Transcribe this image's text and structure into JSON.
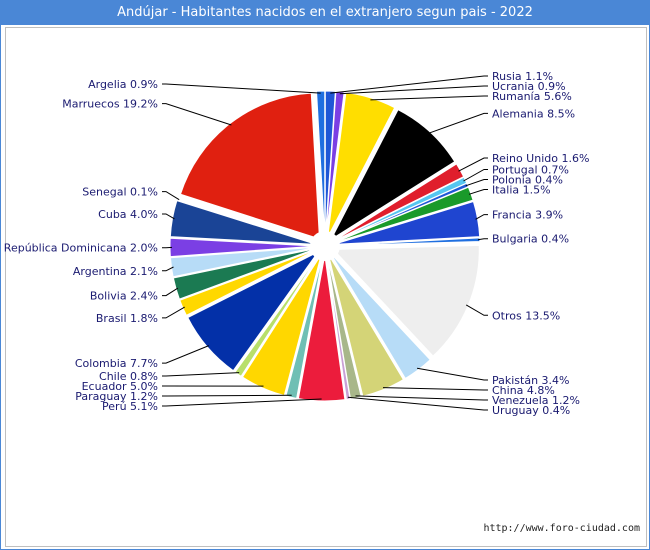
{
  "title": "Andújar - Habitantes nacidos en el extranjero segun pais - 2022",
  "source": "http://www.foro-ciudad.com",
  "chart_data": {
    "type": "pie",
    "title": "Andújar - Habitantes nacidos en el extranjero segun pais - 2022",
    "unit": "%",
    "slices": [
      {
        "label": "Rusia",
        "value": 1.1,
        "text": "Rusia 1.1%",
        "color": "#1f57d6"
      },
      {
        "label": "Ucrania",
        "value": 0.9,
        "text": "Ucrania 0.9%",
        "color": "#7b3fe4"
      },
      {
        "label": "Rumanía",
        "value": 5.6,
        "text": "Rumanía 5.6%",
        "color": "#ffde00"
      },
      {
        "label": "Alemania",
        "value": 8.5,
        "text": "Alemania 8.5%",
        "color": "#000000"
      },
      {
        "label": "Reino Unido",
        "value": 1.6,
        "text": "Reino Unido 1.6%",
        "color": "#e01e2c"
      },
      {
        "label": "Portugal",
        "value": 0.7,
        "text": "Portugal 0.7%",
        "color": "#55c6f0"
      },
      {
        "label": "Polonia",
        "value": 0.4,
        "text": "Polonia 0.4%",
        "color": "#1f57d6"
      },
      {
        "label": "Italia",
        "value": 1.5,
        "text": "Italia 1.5%",
        "color": "#1a9a2a"
      },
      {
        "label": "Francia",
        "value": 3.9,
        "text": "Francia 3.9%",
        "color": "#1f45d0"
      },
      {
        "label": "Bulgaria",
        "value": 0.4,
        "text": "Bulgaria 0.4%",
        "color": "#1f6fe0"
      },
      {
        "label": "Otros",
        "value": 13.5,
        "text": "Otros 13.5%",
        "color": "#eeeeee"
      },
      {
        "label": "Pakistán",
        "value": 3.4,
        "text": "Pakistán 3.4%",
        "color": "#b7dcf7"
      },
      {
        "label": "China",
        "value": 4.8,
        "text": "China 4.8%",
        "color": "#d4d477"
      },
      {
        "label": "Venezuela",
        "value": 1.2,
        "text": "Venezuela 1.2%",
        "color": "#a8b78a"
      },
      {
        "label": "Uruguay",
        "value": 0.4,
        "text": "Uruguay 0.4%",
        "color": "#c9a0d6"
      },
      {
        "label": "Perú",
        "value": 5.1,
        "text": "Perú 5.1%",
        "color": "#ec1c3c"
      },
      {
        "label": "Paraguay",
        "value": 1.2,
        "text": "Paraguay 1.2%",
        "color": "#6fbfb4"
      },
      {
        "label": "Ecuador",
        "value": 5.0,
        "text": "Ecuador 5.0%",
        "color": "#ffd700"
      },
      {
        "label": "Chile",
        "value": 0.8,
        "text": "Chile 0.8%",
        "color": "#b8df6a"
      },
      {
        "label": "Colombia",
        "value": 7.7,
        "text": "Colombia 7.7%",
        "color": "#0330a8"
      },
      {
        "label": "Brasil",
        "value": 1.8,
        "text": "Brasil 1.8%",
        "color": "#ffd800"
      },
      {
        "label": "Bolivia",
        "value": 2.4,
        "text": "Bolivia 2.4%",
        "color": "#1b7a52"
      },
      {
        "label": "Argentina",
        "value": 2.1,
        "text": "Argentina 2.1%",
        "color": "#b7dcf7"
      },
      {
        "label": "República Dominicana",
        "value": 2.0,
        "text": "República Dominicana 2.0%",
        "color": "#7b3fe4"
      },
      {
        "label": "Cuba",
        "value": 4.0,
        "text": "Cuba 4.0%",
        "color": "#1a4496"
      },
      {
        "label": "Senegal",
        "value": 0.1,
        "text": "Senegal 0.1%",
        "color": "#e67e22"
      },
      {
        "label": "Marruecos",
        "value": 19.2,
        "text": "Marruecos 19.2%",
        "color": "#e02010"
      },
      {
        "label": "Argelia",
        "value": 0.9,
        "text": "Argelia 0.9%",
        "color": "#1f6fe0"
      }
    ]
  }
}
